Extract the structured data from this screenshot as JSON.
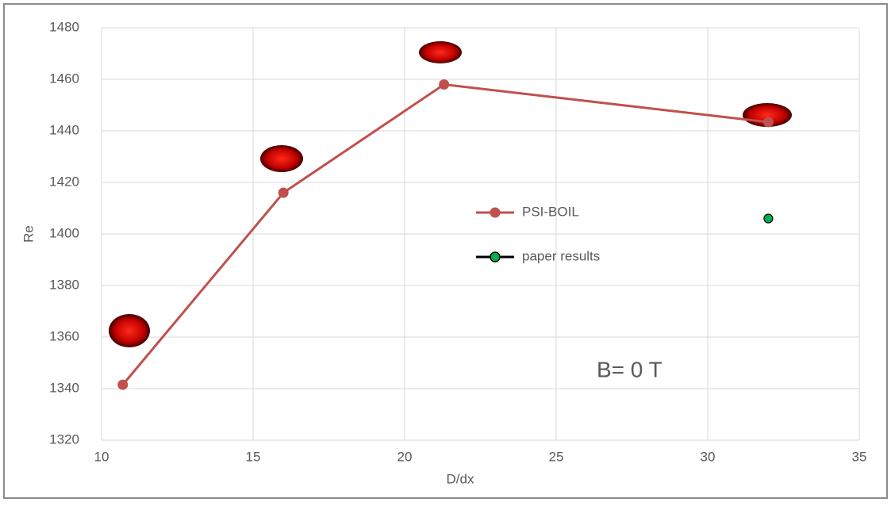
{
  "chart_data": {
    "type": "line",
    "xlabel": "D/dx",
    "ylabel": "Re",
    "xlim": [
      10,
      35
    ],
    "xticks": [
      10,
      15,
      20,
      25,
      30,
      35
    ],
    "ylim": [
      1320,
      1480
    ],
    "yticks": [
      1320,
      1340,
      1360,
      1380,
      1400,
      1420,
      1440,
      1460,
      1480
    ],
    "grid": true,
    "annotation": "B= 0 T",
    "series": [
      {
        "name": "PSI-BOIL",
        "type": "line",
        "color": "#c0504d",
        "x": [
          10.7,
          16.0,
          21.3,
          32.0
        ],
        "values": [
          1341.5,
          1416,
          1458,
          1443.4
        ]
      },
      {
        "name": "paper results",
        "type": "scatter",
        "color": "#00b050",
        "edgecolor": "#000000",
        "x": [
          32.0
        ],
        "values": [
          1406
        ]
      }
    ]
  }
}
